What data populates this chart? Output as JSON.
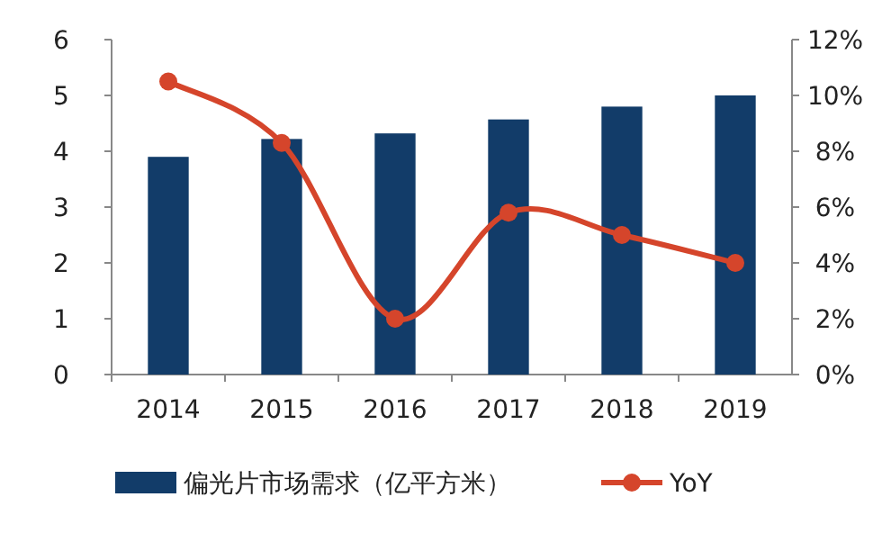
{
  "chart_data": {
    "type": "bar",
    "categories": [
      "2014",
      "2015",
      "2016",
      "2017",
      "2018",
      "2019"
    ],
    "series": [
      {
        "name": "偏光片市场需求（亿平方米）",
        "color": "#123c69",
        "values": [
          3.9,
          4.22,
          4.32,
          4.57,
          4.8,
          5.0
        ]
      },
      {
        "name": "YoY",
        "type": "line",
        "axis": "y2",
        "color": "#d5452b",
        "values": [
          10.5,
          8.3,
          2.0,
          5.8,
          5.0,
          4.0
        ]
      }
    ],
    "ylim": [
      0,
      6
    ],
    "yticks": [
      0,
      1,
      2,
      3,
      4,
      5,
      6
    ],
    "y2lim": [
      0,
      12
    ],
    "y2ticks": [
      {
        "value": 0,
        "label": "0%"
      },
      {
        "value": 2,
        "label": "2%"
      },
      {
        "value": 4,
        "label": "4%"
      },
      {
        "value": 6,
        "label": "6%"
      },
      {
        "value": 8,
        "label": "8%"
      },
      {
        "value": 10,
        "label": "10%"
      },
      {
        "value": 12,
        "label": "12%"
      }
    ],
    "legend": "bottom",
    "marker": "circle"
  }
}
